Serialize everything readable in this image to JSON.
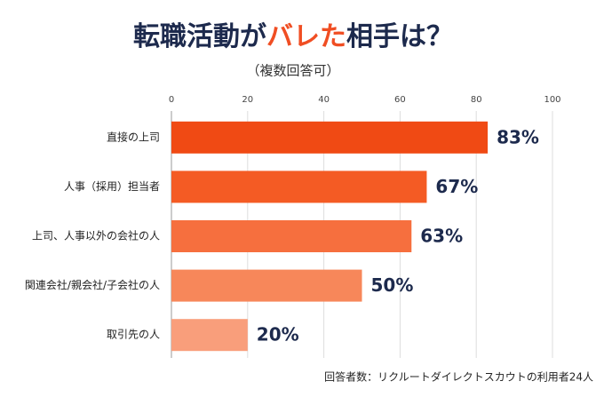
{
  "chart_data": {
    "type": "bar",
    "orientation": "horizontal",
    "title": [
      "転職活動が",
      "バレた",
      "相手は？"
    ],
    "title_colors": [
      "#1d2a4d",
      "#f04e23",
      "#1d2a4d"
    ],
    "subtitle": "（複数回答可）",
    "note": "回答者数：リクルートダイレクトスカウトの利用者24人",
    "categories": [
      "直接の上司",
      "人事（採用）担当者",
      "上司、人事以外の会社の人",
      "関連会社/親会社/子会社の人",
      "取引先の人"
    ],
    "values": [
      83,
      67,
      63,
      50,
      20
    ],
    "value_labels": [
      "83%",
      "67%",
      "63%",
      "50%",
      "20%"
    ],
    "colors": [
      "#f04a14",
      "#f45b24",
      "#f66f3e",
      "#f7875a",
      "#f99e7b"
    ],
    "xlim": [
      0,
      100
    ],
    "xticks": [
      0,
      20,
      40,
      60,
      80,
      100
    ],
    "grid": true
  }
}
